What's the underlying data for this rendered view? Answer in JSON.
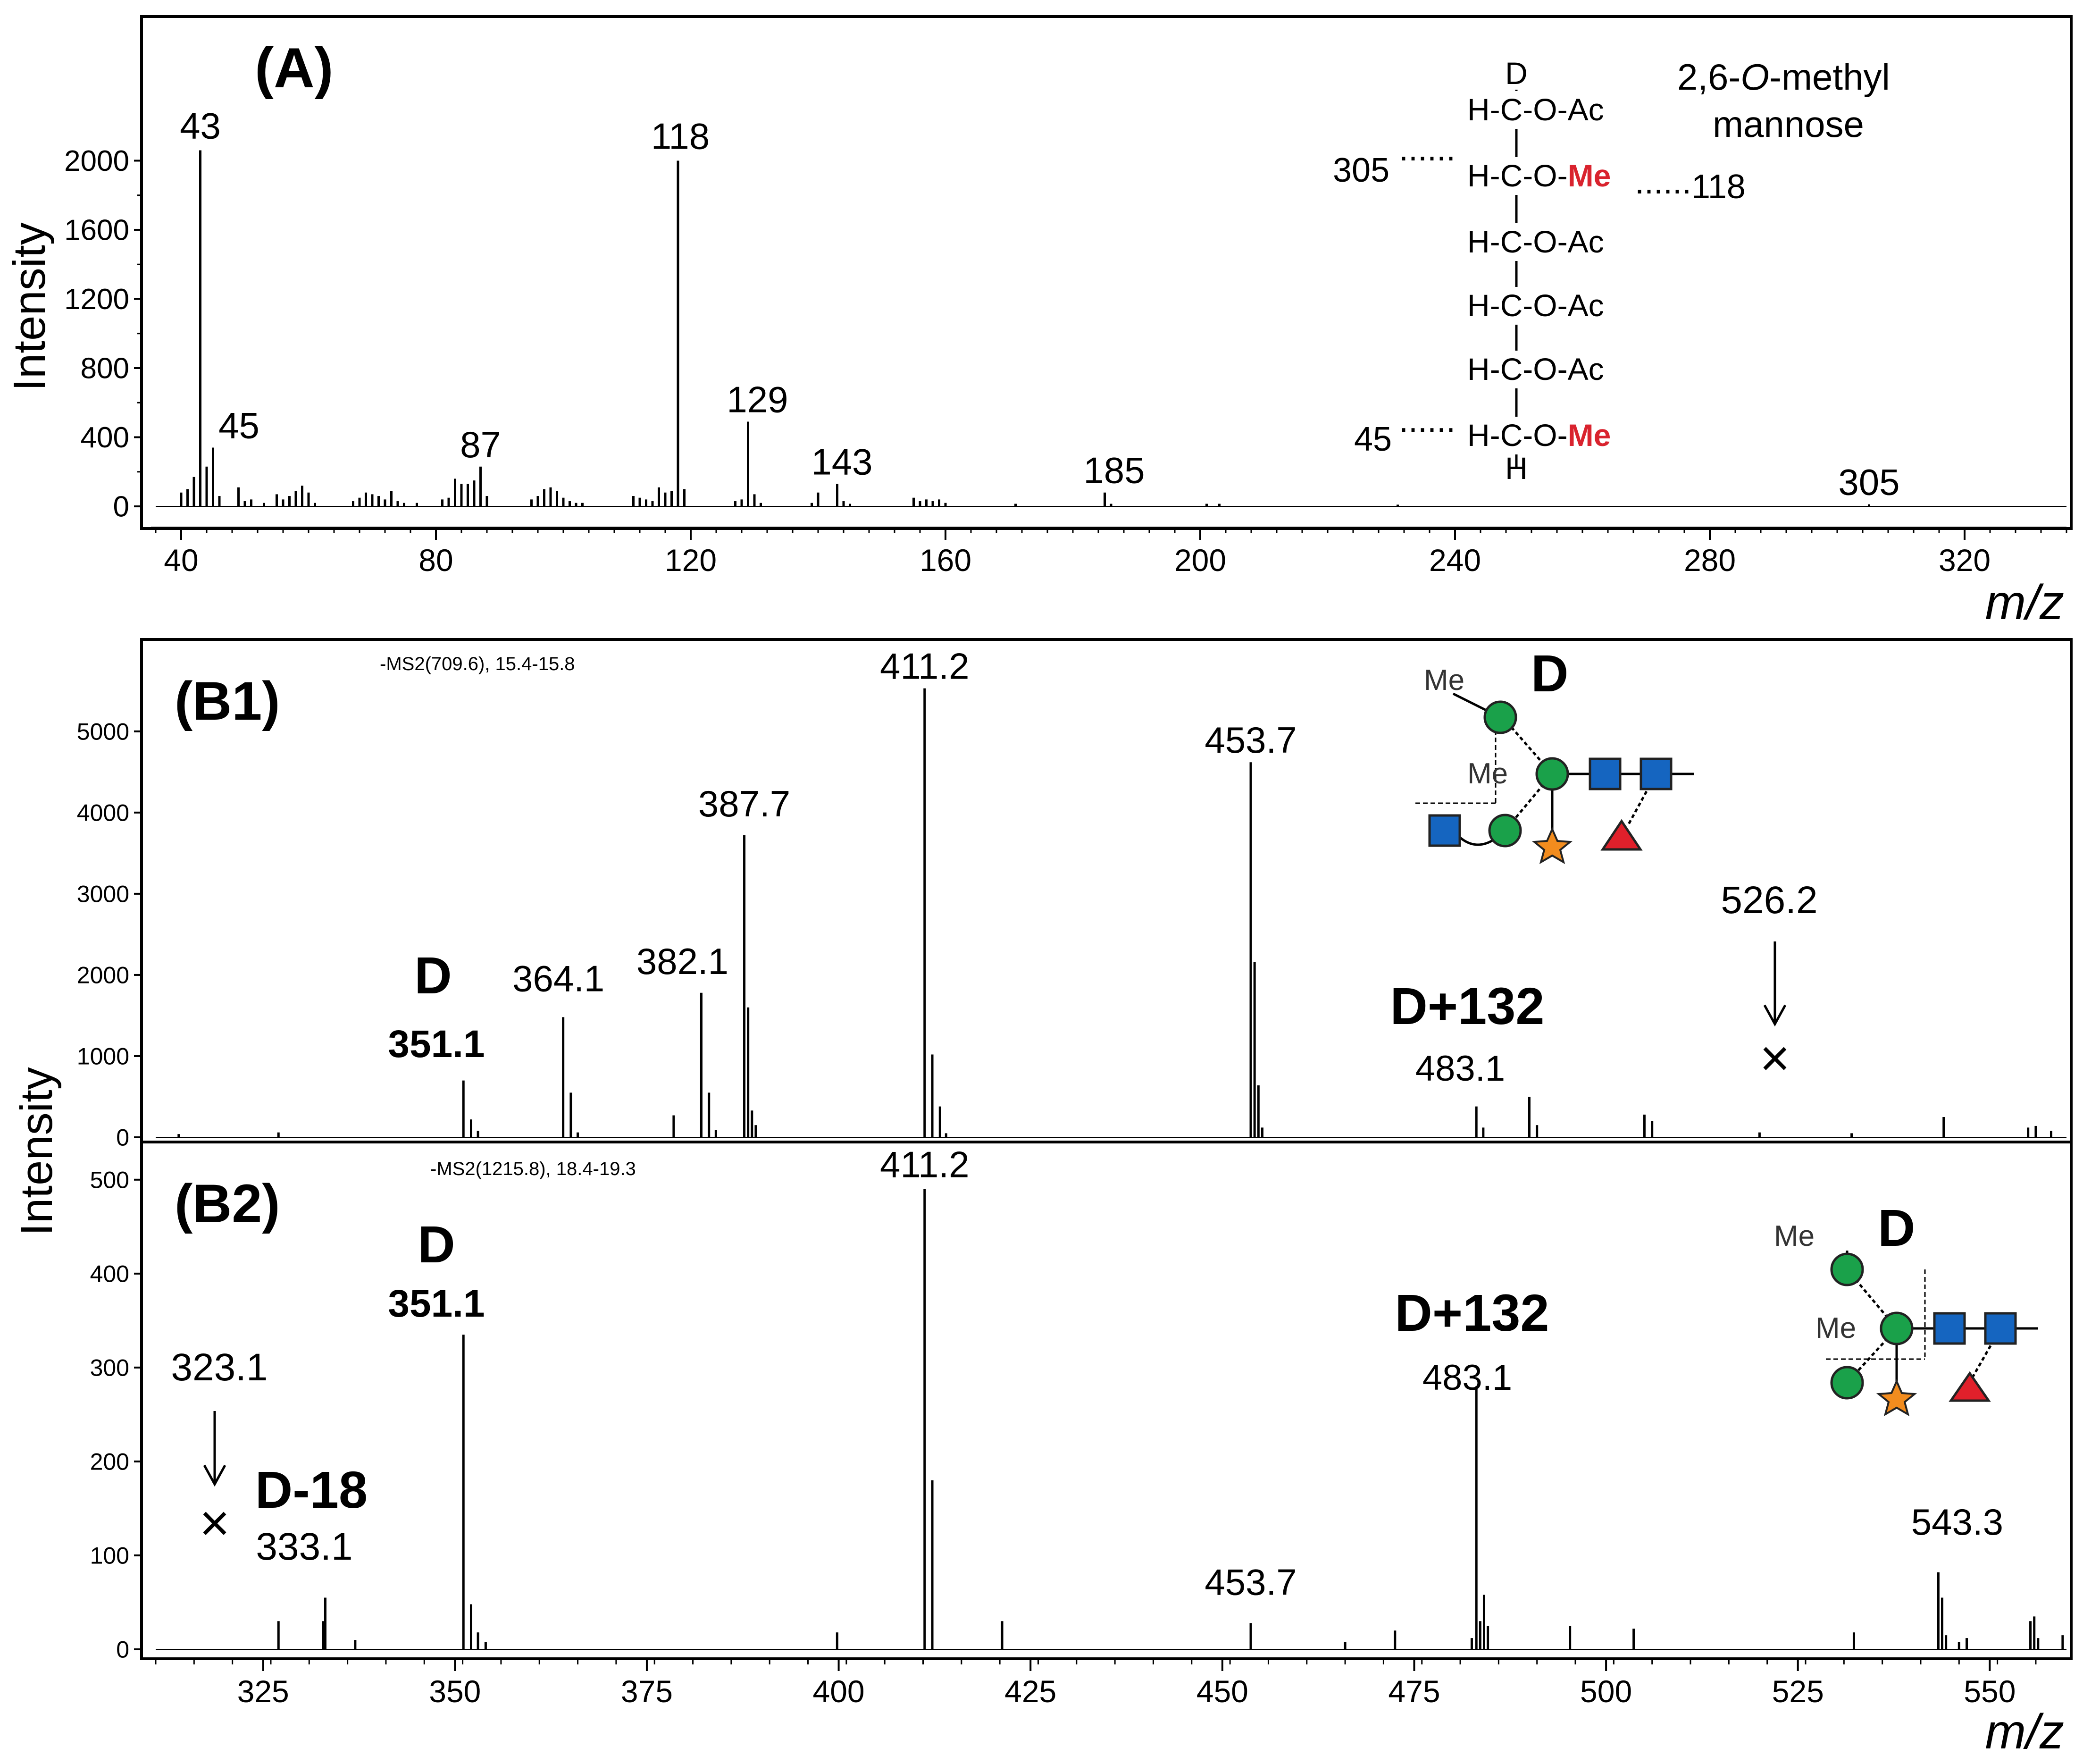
{
  "colors": {
    "ink": "#000000",
    "me_red": "#d9232e",
    "gal_green": "#1aa14a",
    "glcnac_blue": "#1565c0",
    "fuc_red": "#e0202b",
    "star_orange": "#f28c1e"
  },
  "chart_data": [
    {
      "id": "A",
      "panel_label": "(A)",
      "type": "bar",
      "title": "",
      "xlabel": "m/z",
      "ylabel": "Intensity",
      "xlim": [
        36,
        336
      ],
      "ylim": [
        -60,
        2520
      ],
      "x_ticks": [
        40,
        80,
        120,
        160,
        200,
        240,
        280,
        320
      ],
      "y_ticks": [
        0,
        400,
        800,
        1200,
        1600,
        2000
      ],
      "peaks": [
        {
          "mz": 40,
          "i": 80
        },
        {
          "mz": 41,
          "i": 100
        },
        {
          "mz": 42,
          "i": 170
        },
        {
          "mz": 43,
          "i": 2060
        },
        {
          "mz": 44,
          "i": 230
        },
        {
          "mz": 45,
          "i": 340
        },
        {
          "mz": 46,
          "i": 60
        },
        {
          "mz": 49,
          "i": 110
        },
        {
          "mz": 50,
          "i": 30
        },
        {
          "mz": 51,
          "i": 40
        },
        {
          "mz": 53,
          "i": 20
        },
        {
          "mz": 55,
          "i": 70
        },
        {
          "mz": 56,
          "i": 40
        },
        {
          "mz": 57,
          "i": 60
        },
        {
          "mz": 58,
          "i": 90
        },
        {
          "mz": 59,
          "i": 120
        },
        {
          "mz": 60,
          "i": 80
        },
        {
          "mz": 61,
          "i": 20
        },
        {
          "mz": 67,
          "i": 30
        },
        {
          "mz": 68,
          "i": 50
        },
        {
          "mz": 69,
          "i": 80
        },
        {
          "mz": 70,
          "i": 70
        },
        {
          "mz": 71,
          "i": 60
        },
        {
          "mz": 72,
          "i": 40
        },
        {
          "mz": 73,
          "i": 90
        },
        {
          "mz": 74,
          "i": 30
        },
        {
          "mz": 75,
          "i": 20
        },
        {
          "mz": 77,
          "i": 20
        },
        {
          "mz": 81,
          "i": 40
        },
        {
          "mz": 82,
          "i": 50
        },
        {
          "mz": 83,
          "i": 160
        },
        {
          "mz": 84,
          "i": 130
        },
        {
          "mz": 85,
          "i": 130
        },
        {
          "mz": 86,
          "i": 150
        },
        {
          "mz": 87,
          "i": 230
        },
        {
          "mz": 88,
          "i": 60
        },
        {
          "mz": 95,
          "i": 40
        },
        {
          "mz": 96,
          "i": 60
        },
        {
          "mz": 97,
          "i": 100
        },
        {
          "mz": 98,
          "i": 110
        },
        {
          "mz": 99,
          "i": 90
        },
        {
          "mz": 100,
          "i": 50
        },
        {
          "mz": 101,
          "i": 30
        },
        {
          "mz": 102,
          "i": 20
        },
        {
          "mz": 103,
          "i": 20
        },
        {
          "mz": 111,
          "i": 60
        },
        {
          "mz": 112,
          "i": 50
        },
        {
          "mz": 113,
          "i": 40
        },
        {
          "mz": 114,
          "i": 30
        },
        {
          "mz": 115,
          "i": 110
        },
        {
          "mz": 116,
          "i": 80
        },
        {
          "mz": 117,
          "i": 90
        },
        {
          "mz": 118,
          "i": 2000
        },
        {
          "mz": 119,
          "i": 100
        },
        {
          "mz": 127,
          "i": 30
        },
        {
          "mz": 128,
          "i": 40
        },
        {
          "mz": 129,
          "i": 490
        },
        {
          "mz": 130,
          "i": 70
        },
        {
          "mz": 131,
          "i": 20
        },
        {
          "mz": 139,
          "i": 20
        },
        {
          "mz": 140,
          "i": 80
        },
        {
          "mz": 143,
          "i": 130
        },
        {
          "mz": 144,
          "i": 30
        },
        {
          "mz": 145,
          "i": 15
        },
        {
          "mz": 155,
          "i": 50
        },
        {
          "mz": 156,
          "i": 30
        },
        {
          "mz": 157,
          "i": 40
        },
        {
          "mz": 158,
          "i": 30
        },
        {
          "mz": 159,
          "i": 40
        },
        {
          "mz": 160,
          "i": 20
        },
        {
          "mz": 171,
          "i": 15
        },
        {
          "mz": 185,
          "i": 80
        },
        {
          "mz": 186,
          "i": 15
        },
        {
          "mz": 201,
          "i": 15
        },
        {
          "mz": 203,
          "i": 15
        },
        {
          "mz": 231,
          "i": 10
        },
        {
          "mz": 305,
          "i": 12
        }
      ],
      "peak_labels": [
        {
          "text": "43",
          "mz": 43,
          "i": 2060
        },
        {
          "text": "45",
          "mz": 45,
          "i": 340
        },
        {
          "text": "87",
          "mz": 87,
          "i": 230
        },
        {
          "text": "118",
          "mz": 118,
          "i": 2000
        },
        {
          "text": "129",
          "mz": 129,
          "i": 490
        },
        {
          "text": "143",
          "mz": 143,
          "i": 130
        },
        {
          "text": "185",
          "mz": 185,
          "i": 80
        },
        {
          "text": "305",
          "mz": 305,
          "i": 12
        }
      ]
    },
    {
      "id": "B1",
      "panel_label": "(B1)",
      "type": "bar",
      "title": "",
      "subtitle": "-MS2(709.6), 15.4-15.8",
      "xlabel": "",
      "ylabel": "",
      "xlim": [
        311,
        560
      ],
      "ylim": [
        0,
        5900
      ],
      "y_ticks": [
        0,
        1000,
        2000,
        3000,
        4000,
        5000
      ],
      "peaks": [
        {
          "mz": 314,
          "i": 40
        },
        {
          "mz": 327,
          "i": 60
        },
        {
          "mz": 351.1,
          "i": 700
        },
        {
          "mz": 352.1,
          "i": 220
        },
        {
          "mz": 353,
          "i": 80
        },
        {
          "mz": 364.1,
          "i": 1480
        },
        {
          "mz": 365.1,
          "i": 550
        },
        {
          "mz": 366,
          "i": 60
        },
        {
          "mz": 378.5,
          "i": 270
        },
        {
          "mz": 382.1,
          "i": 1780
        },
        {
          "mz": 383.1,
          "i": 550
        },
        {
          "mz": 384,
          "i": 90
        },
        {
          "mz": 387.7,
          "i": 3720
        },
        {
          "mz": 388.2,
          "i": 1600
        },
        {
          "mz": 388.7,
          "i": 330
        },
        {
          "mz": 389.2,
          "i": 150
        },
        {
          "mz": 411.2,
          "i": 5530
        },
        {
          "mz": 412.2,
          "i": 1020
        },
        {
          "mz": 413.2,
          "i": 380
        },
        {
          "mz": 414,
          "i": 50
        },
        {
          "mz": 453.7,
          "i": 4620
        },
        {
          "mz": 454.2,
          "i": 2160
        },
        {
          "mz": 454.7,
          "i": 640
        },
        {
          "mz": 455.2,
          "i": 120
        },
        {
          "mz": 483.1,
          "i": 380
        },
        {
          "mz": 484,
          "i": 120
        },
        {
          "mz": 490,
          "i": 500
        },
        {
          "mz": 491,
          "i": 150
        },
        {
          "mz": 505,
          "i": 280
        },
        {
          "mz": 506,
          "i": 200
        },
        {
          "mz": 520,
          "i": 60
        },
        {
          "mz": 532,
          "i": 50
        },
        {
          "mz": 544,
          "i": 250
        },
        {
          "mz": 555,
          "i": 120
        },
        {
          "mz": 556,
          "i": 140
        },
        {
          "mz": 558,
          "i": 80
        }
      ],
      "peak_labels": [
        {
          "text": "364.1",
          "mz": 364.1,
          "i": 1480
        },
        {
          "text": "382.1",
          "mz": 382.1,
          "i": 1780
        },
        {
          "text": "387.7",
          "mz": 387.7,
          "i": 3720
        },
        {
          "text": "411.2",
          "mz": 411.2,
          "i": 5530
        },
        {
          "text": "453.7",
          "mz": 453.7,
          "i": 4620
        }
      ],
      "annotations": [
        {
          "key": "D",
          "text": "D"
        },
        {
          "key": "D_mz",
          "text": "351.1"
        },
        {
          "key": "D132",
          "text": "D+132"
        },
        {
          "key": "D132_mz",
          "text": "483.1"
        },
        {
          "key": "missing_mz",
          "text": "526.2",
          "mark": "×"
        }
      ],
      "glycan": {
        "me_top": "Me",
        "me_mid": "Me",
        "fragment": "D"
      }
    },
    {
      "id": "B2",
      "panel_label": "(B2)",
      "type": "bar",
      "title": "",
      "subtitle": "-MS2(1215.8), 18.4-19.3",
      "xlabel": "m/z",
      "ylabel": "",
      "xlim": [
        311,
        560
      ],
      "ylim": [
        0,
        520
      ],
      "x_ticks": [
        325,
        350,
        375,
        400,
        425,
        450,
        475,
        500,
        525,
        550
      ],
      "y_ticks": [
        0,
        100,
        200,
        300,
        400,
        500
      ],
      "peaks": [
        {
          "mz": 327,
          "i": 30
        },
        {
          "mz": 333.1,
          "i": 55
        },
        {
          "mz": 332.8,
          "i": 30
        },
        {
          "mz": 337,
          "i": 10
        },
        {
          "mz": 351.1,
          "i": 335
        },
        {
          "mz": 352.1,
          "i": 48
        },
        {
          "mz": 353,
          "i": 18
        },
        {
          "mz": 354,
          "i": 8
        },
        {
          "mz": 399.8,
          "i": 18
        },
        {
          "mz": 411.2,
          "i": 490
        },
        {
          "mz": 412.2,
          "i": 180
        },
        {
          "mz": 421.3,
          "i": 30
        },
        {
          "mz": 453.7,
          "i": 28
        },
        {
          "mz": 466,
          "i": 8
        },
        {
          "mz": 472.5,
          "i": 20
        },
        {
          "mz": 482.5,
          "i": 12
        },
        {
          "mz": 483.1,
          "i": 280
        },
        {
          "mz": 483.6,
          "i": 30
        },
        {
          "mz": 484.1,
          "i": 58
        },
        {
          "mz": 484.6,
          "i": 25
        },
        {
          "mz": 495.3,
          "i": 25
        },
        {
          "mz": 503.6,
          "i": 22
        },
        {
          "mz": 532.3,
          "i": 18
        },
        {
          "mz": 543.3,
          "i": 82
        },
        {
          "mz": 543.8,
          "i": 55
        },
        {
          "mz": 544.3,
          "i": 15
        },
        {
          "mz": 546,
          "i": 8
        },
        {
          "mz": 547,
          "i": 12
        },
        {
          "mz": 555.3,
          "i": 30
        },
        {
          "mz": 555.8,
          "i": 35
        },
        {
          "mz": 556.3,
          "i": 12
        },
        {
          "mz": 559.5,
          "i": 15
        }
      ],
      "peak_labels": [
        {
          "text": "411.2",
          "mz": 411.2,
          "i": 490
        },
        {
          "text": "453.7",
          "mz": 453.7,
          "i": 28
        },
        {
          "text": "543.3",
          "mz": 543.3,
          "i": 82
        }
      ],
      "annotations": [
        {
          "key": "D",
          "text": "D"
        },
        {
          "key": "D_mz",
          "text": "351.1"
        },
        {
          "key": "D132",
          "text": "D+132"
        },
        {
          "key": "D132_mz",
          "text": "483.1"
        },
        {
          "key": "missing_mz",
          "text": "323.1",
          "mark": "×"
        },
        {
          "key": "D18",
          "text": "D-18"
        },
        {
          "key": "D18_mz",
          "text": "333.1"
        }
      ],
      "glycan": {
        "me_top": "Me",
        "me_mid": "Me",
        "fragment": "D"
      }
    }
  ],
  "panel_B_ylabel": "Intensity",
  "structure_A": {
    "compound_line1": "2,6-",
    "compound_italic": "O",
    "compound_line1_end": "-methyl",
    "compound_line2": "mannose",
    "top_letter": "D",
    "rows": [
      "H-C-O-Ac",
      "H-C-O-",
      "H-C-O-Ac",
      "H-C-O-Ac",
      "H-C-O-Ac",
      "H-C-O-"
    ],
    "methyl": "Me",
    "bottom_letter": "H",
    "frag_left_top": "305",
    "frag_left_bottom": "45",
    "frag_right": "118",
    "dots": "......"
  }
}
